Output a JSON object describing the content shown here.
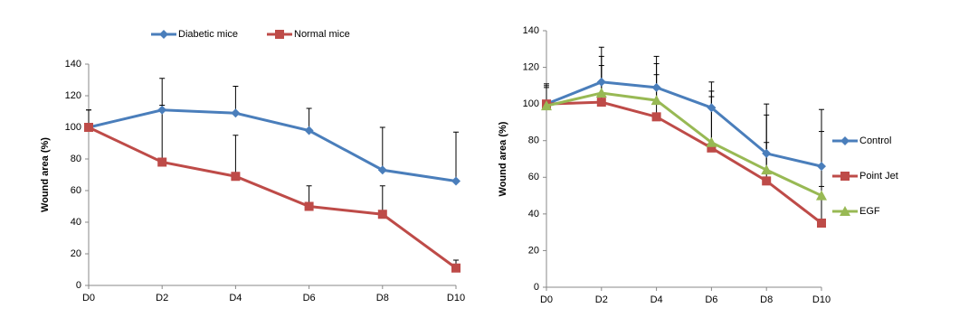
{
  "chart_data": [
    {
      "type": "line",
      "y_label": "Wound area (%)",
      "legend": "top",
      "categories": [
        "D0",
        "D2",
        "D4",
        "D6",
        "D8",
        "D10"
      ],
      "ylim": [
        0,
        140
      ],
      "yticks": [
        0,
        20,
        40,
        60,
        80,
        100,
        120,
        140
      ],
      "series": [
        {
          "name": "Diabetic mice",
          "color": "#4a7ebb",
          "marker": "diamond",
          "values": [
            100,
            111,
            109,
            98,
            73,
            66
          ],
          "errors": [
            11,
            20,
            17,
            14,
            27,
            31
          ]
        },
        {
          "name": "Normal mice",
          "color": "#be4b48",
          "marker": "square",
          "values": [
            100,
            78,
            69,
            50,
            45,
            11
          ],
          "errors": [
            11,
            36,
            26,
            13,
            18,
            5
          ]
        }
      ]
    },
    {
      "type": "line",
      "y_label": "Wound area (%)",
      "legend": "right",
      "categories": [
        "D0",
        "D2",
        "D4",
        "D6",
        "D8",
        "D10"
      ],
      "ylim": [
        0,
        140
      ],
      "yticks": [
        0,
        20,
        40,
        60,
        80,
        100,
        120,
        140
      ],
      "series": [
        {
          "name": "Control",
          "color": "#4a7ebb",
          "marker": "diamond",
          "values": [
            100,
            112,
            109,
            98,
            73,
            66
          ],
          "errors": [
            11,
            19,
            17,
            14,
            27,
            31
          ]
        },
        {
          "name": "Point Jet",
          "color": "#be4b48",
          "marker": "square",
          "values": [
            100,
            101,
            93,
            76,
            58,
            35
          ],
          "errors": [
            10,
            20,
            23,
            31,
            21,
            20
          ]
        },
        {
          "name": "EGF",
          "color": "#98b954",
          "marker": "triangle",
          "values": [
            99,
            106,
            102,
            79,
            64,
            50
          ],
          "errors": [
            10,
            20,
            20,
            25,
            30,
            35
          ]
        }
      ]
    }
  ]
}
